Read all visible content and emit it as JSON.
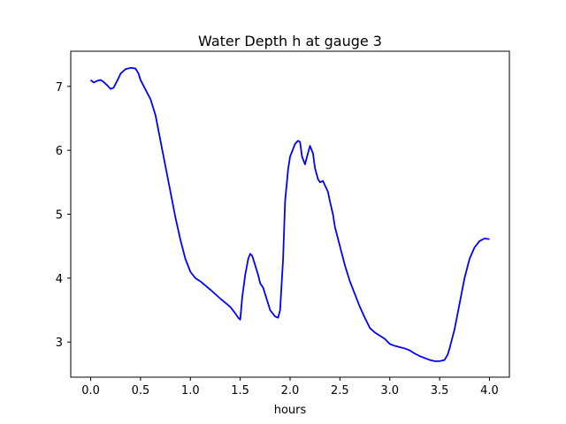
{
  "chart_data": {
    "type": "line",
    "title": "Water Depth h at gauge 3",
    "xlabel": "hours",
    "ylabel": "",
    "xlim": [
      -0.2,
      4.2
    ],
    "ylim": [
      2.45,
      7.55
    ],
    "xticks": [
      0.0,
      0.5,
      1.0,
      1.5,
      2.0,
      2.5,
      3.0,
      3.5,
      4.0
    ],
    "xtick_labels": [
      "0.0",
      "0.5",
      "1.0",
      "1.5",
      "2.0",
      "2.5",
      "3.0",
      "3.5",
      "4.0"
    ],
    "yticks": [
      3,
      4,
      5,
      6,
      7
    ],
    "ytick_labels": [
      "3",
      "4",
      "5",
      "6",
      "7"
    ],
    "grid": false,
    "series": [
      {
        "color": "#0000ff",
        "x": [
          0.0,
          0.03,
          0.07,
          0.1,
          0.13,
          0.17,
          0.2,
          0.23,
          0.27,
          0.3,
          0.35,
          0.4,
          0.45,
          0.48,
          0.5,
          0.55,
          0.6,
          0.65,
          0.7,
          0.75,
          0.8,
          0.85,
          0.9,
          0.95,
          1.0,
          1.05,
          1.1,
          1.2,
          1.3,
          1.4,
          1.45,
          1.48,
          1.5,
          1.52,
          1.55,
          1.58,
          1.6,
          1.62,
          1.65,
          1.68,
          1.7,
          1.73,
          1.75,
          1.78,
          1.8,
          1.85,
          1.88,
          1.9,
          1.93,
          1.95,
          1.98,
          2.0,
          2.05,
          2.08,
          2.1,
          2.12,
          2.15,
          2.17,
          2.2,
          2.23,
          2.25,
          2.28,
          2.3,
          2.33,
          2.35,
          2.38,
          2.4,
          2.43,
          2.45,
          2.5,
          2.55,
          2.6,
          2.65,
          2.7,
          2.75,
          2.8,
          2.85,
          2.9,
          2.95,
          3.0,
          3.05,
          3.1,
          3.15,
          3.2,
          3.25,
          3.3,
          3.35,
          3.4,
          3.45,
          3.47,
          3.5,
          3.55,
          3.58,
          3.6,
          3.65,
          3.7,
          3.75,
          3.8,
          3.85,
          3.9,
          3.95,
          4.0
        ],
        "values": [
          7.1,
          7.06,
          7.09,
          7.1,
          7.07,
          7.01,
          6.96,
          6.98,
          7.1,
          7.2,
          7.27,
          7.29,
          7.28,
          7.2,
          7.1,
          6.95,
          6.8,
          6.55,
          6.15,
          5.75,
          5.35,
          4.95,
          4.6,
          4.3,
          4.1,
          4.0,
          3.95,
          3.82,
          3.68,
          3.55,
          3.45,
          3.38,
          3.35,
          3.7,
          4.05,
          4.3,
          4.38,
          4.35,
          4.2,
          4.05,
          3.92,
          3.85,
          3.75,
          3.6,
          3.5,
          3.4,
          3.38,
          3.5,
          4.3,
          5.2,
          5.7,
          5.9,
          6.1,
          6.15,
          6.13,
          5.9,
          5.78,
          5.9,
          6.07,
          5.95,
          5.72,
          5.55,
          5.5,
          5.52,
          5.45,
          5.35,
          5.2,
          5.0,
          4.8,
          4.5,
          4.2,
          3.95,
          3.75,
          3.55,
          3.38,
          3.22,
          3.15,
          3.1,
          3.05,
          2.97,
          2.94,
          2.92,
          2.9,
          2.87,
          2.82,
          2.78,
          2.75,
          2.72,
          2.7,
          2.7,
          2.7,
          2.72,
          2.8,
          2.9,
          3.2,
          3.6,
          4.0,
          4.3,
          4.48,
          4.58,
          4.62,
          4.61
        ]
      }
    ]
  }
}
